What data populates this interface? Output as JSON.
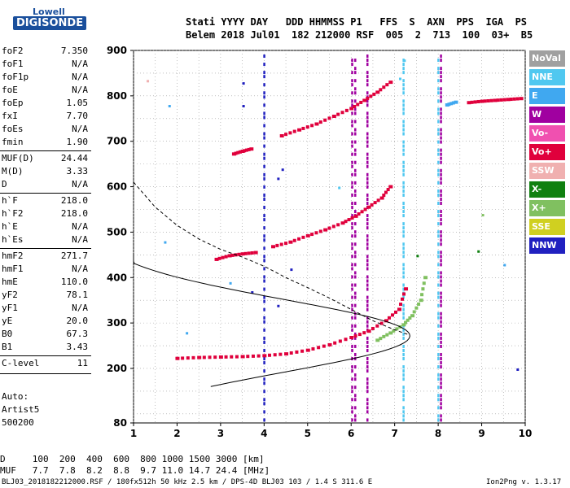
{
  "logo": {
    "top": "Lowell",
    "main": "DIGISONDE"
  },
  "header": {
    "line1": "Stati YYYY DAY   DDD HHMMSS P1   FFS  S  AXN  PPS  IGA  PS",
    "line2": "Belem 2018 Jul01  182 212000 RSF  005  2  713  100  03+  B5"
  },
  "params": [
    {
      "name": "foF2",
      "value": "7.350"
    },
    {
      "name": "foF1",
      "value": "N/A"
    },
    {
      "name": "foF1p",
      "value": "N/A"
    },
    {
      "name": "foE",
      "value": "N/A"
    },
    {
      "name": "foEp",
      "value": "1.05"
    },
    {
      "name": "fxI",
      "value": "7.70"
    },
    {
      "name": "foEs",
      "value": "N/A"
    },
    {
      "name": "fmin",
      "value": "1.90"
    },
    {
      "name": "MUF(D)",
      "value": "24.44"
    },
    {
      "name": "M(D)",
      "value": "3.33"
    },
    {
      "name": "D",
      "value": "N/A"
    },
    {
      "name": "h`F",
      "value": "218.0"
    },
    {
      "name": "h`F2",
      "value": "218.0"
    },
    {
      "name": "h`E",
      "value": "N/A"
    },
    {
      "name": "h`Es",
      "value": "N/A"
    },
    {
      "name": "hmF2",
      "value": "271.7"
    },
    {
      "name": "hmF1",
      "value": "N/A"
    },
    {
      "name": "hmE",
      "value": "110.0"
    },
    {
      "name": "yF2",
      "value": "78.1"
    },
    {
      "name": "yF1",
      "value": "N/A"
    },
    {
      "name": "yE",
      "value": "20.0"
    },
    {
      "name": "B0",
      "value": "67.3"
    },
    {
      "name": "B1",
      "value": "3.43"
    },
    {
      "name": "C-level",
      "value": "11"
    }
  ],
  "auto": {
    "line1": "Auto:",
    "line2": "Artist5",
    "line3": "500200"
  },
  "legend": [
    {
      "label": "NoVal",
      "color": "#a0a0a0"
    },
    {
      "label": "NNE",
      "color": "#50c8f0"
    },
    {
      "label": "E",
      "color": "#40a8f0"
    },
    {
      "label": "W",
      "color": "#a000a0"
    },
    {
      "label": "Vo-",
      "color": "#f050b0"
    },
    {
      "label": "Vo+",
      "color": "#e0003c"
    },
    {
      "label": "SSW",
      "color": "#f0b0b0"
    },
    {
      "label": "X-",
      "color": "#108010"
    },
    {
      "label": "X+",
      "color": "#80c060"
    },
    {
      "label": "SSE",
      "color": "#d0d020"
    },
    {
      "label": "NNW",
      "color": "#2020c0"
    }
  ],
  "mufd_table": {
    "d_row": "D     100  200  400  600  800 1000 1500 3000 [km]",
    "muf_row": "MUF   7.7  7.8  8.2  8.8  9.7 11.0 14.7 24.4 [MHz]"
  },
  "footer": {
    "left": "BLJ03_2018182212000.RSF / 180fx512h 50 kHz 2.5 km / DPS-4D BLJ03 103 / 1.4 S 311.6 E",
    "right": "Ion2Png v. 1.3.17"
  },
  "chart_data": {
    "type": "scatter",
    "xlim": [
      1,
      10
    ],
    "ylim": [
      80,
      900
    ],
    "x_ticks": [
      1,
      2,
      3,
      4,
      5,
      6,
      7,
      8,
      9,
      10
    ],
    "y_ticks": [
      80,
      200,
      300,
      400,
      500,
      600,
      700,
      800,
      900
    ],
    "grid": true,
    "series": [
      {
        "name": "Vo+",
        "color": "#e0003c",
        "x": [
          2.0,
          2.5,
          3.0,
          3.5,
          4.0,
          4.5,
          5.0,
          5.5,
          6.0,
          6.4,
          6.8,
          7.1,
          7.25
        ],
        "y": [
          222,
          224,
          225,
          226,
          228,
          232,
          240,
          252,
          268,
          282,
          305,
          330,
          375
        ]
      },
      {
        "name": "X+",
        "color": "#80c060",
        "x": [
          6.6,
          6.9,
          7.2,
          7.4,
          7.6,
          7.7
        ],
        "y": [
          262,
          278,
          296,
          316,
          350,
          400
        ]
      },
      {
        "name": "Vo+",
        "color": "#e0003c",
        "x": [
          4.2,
          4.6,
          5.0,
          5.4,
          5.8,
          6.1,
          6.4,
          6.7,
          6.9
        ],
        "y": [
          468,
          478,
          492,
          505,
          520,
          535,
          555,
          575,
          600
        ]
      },
      {
        "name": "Vo+",
        "color": "#e0003c",
        "x": [
          4.4,
          4.8,
          5.2,
          5.6,
          6.0,
          6.3,
          6.6,
          6.9
        ],
        "y": [
          712,
          725,
          738,
          755,
          772,
          790,
          808,
          830
        ]
      },
      {
        "name": "Vo+",
        "color": "#e0003c",
        "x": [
          2.9,
          3.2,
          3.5,
          3.8
        ],
        "y": [
          440,
          448,
          452,
          455
        ]
      },
      {
        "name": "Vo+",
        "color": "#e0003c",
        "x": [
          3.3,
          3.5,
          3.7
        ],
        "y": [
          672,
          678,
          683
        ]
      },
      {
        "name": "Vo+",
        "color": "#e0003c",
        "x": [
          8.7,
          9.0,
          9.3,
          9.6,
          9.9
        ],
        "y": [
          785,
          788,
          790,
          792,
          794
        ]
      },
      {
        "name": "E",
        "color": "#40a8f0",
        "x": [
          8.2,
          8.4
        ],
        "y": [
          780,
          786
        ]
      }
    ],
    "model_profile": {
      "fmax": 7.35,
      "hm": 271.7,
      "h_base": 160,
      "h_top": 450,
      "label": ""
    },
    "dashed_curve": {
      "x": [
        1.0,
        1.5,
        2.0,
        2.5,
        3.0,
        3.5,
        4.0,
        4.5,
        5.0,
        5.5,
        6.0,
        6.5,
        7.0,
        7.3
      ],
      "y": [
        610,
        555,
        515,
        485,
        462,
        445,
        425,
        400,
        378,
        355,
        330,
        305,
        285,
        275
      ]
    }
  }
}
